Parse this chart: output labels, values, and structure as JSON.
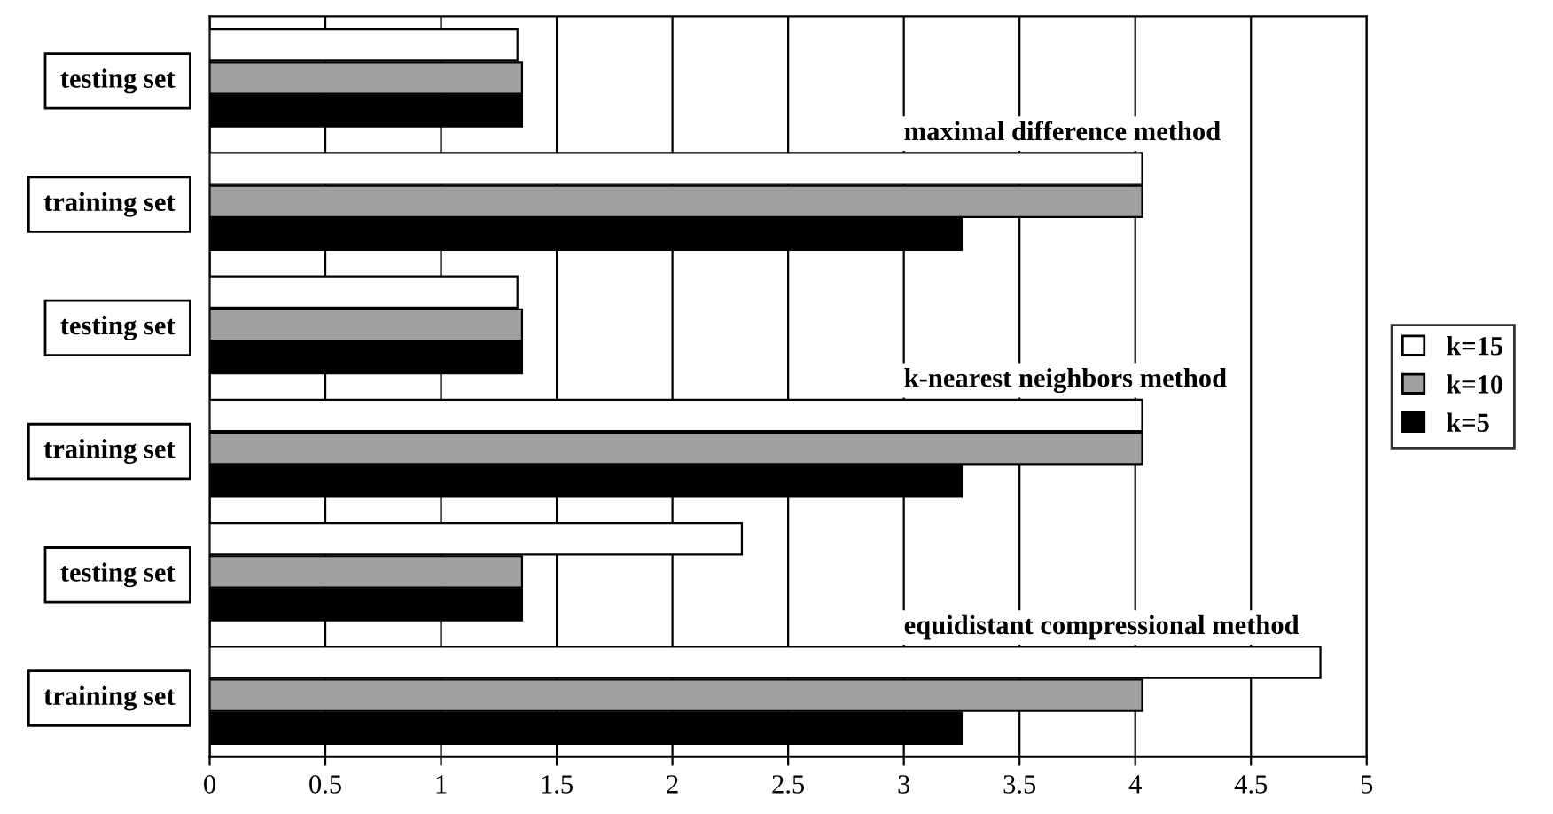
{
  "chart_data": {
    "type": "bar",
    "orientation": "horizontal",
    "categories": [
      "testing set",
      "training set",
      "testing set",
      "training set",
      "testing set",
      "training set"
    ],
    "series": [
      {
        "name": "k=15",
        "color": "#ffffff",
        "values": [
          1.33,
          4.03,
          1.33,
          4.03,
          2.3,
          4.8
        ]
      },
      {
        "name": "k=10",
        "color": "#a0a0a0",
        "values": [
          1.35,
          4.03,
          1.35,
          4.03,
          1.35,
          4.03
        ]
      },
      {
        "name": "k=5",
        "color": "#000000",
        "values": [
          1.35,
          3.25,
          1.35,
          3.25,
          1.35,
          3.25
        ]
      }
    ],
    "xlim": [
      0,
      5
    ],
    "xticks": [
      0,
      0.5,
      1,
      1.5,
      2,
      2.5,
      3,
      3.5,
      4,
      4.5,
      5
    ],
    "grid": "x",
    "legend": "right",
    "annotations": [
      "maximal difference method",
      "k-nearest neighbors method",
      "equidistant compressional method"
    ]
  }
}
